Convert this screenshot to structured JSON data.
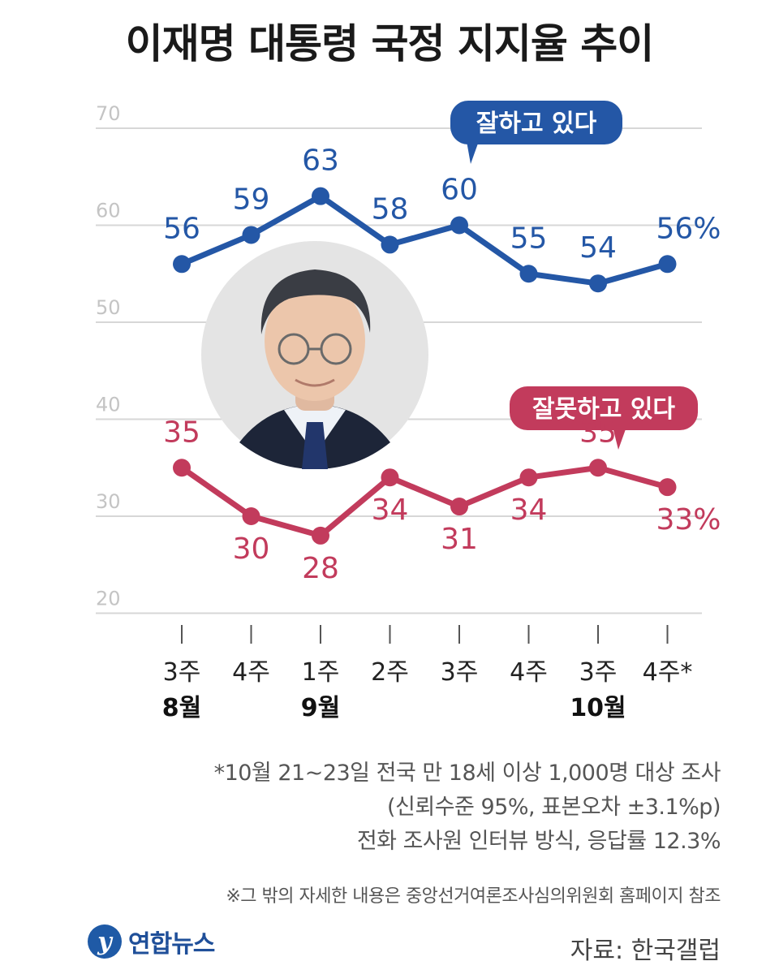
{
  "title": "이재명 대통령 국정 지지율 추이",
  "chart_data": {
    "type": "line",
    "title": "이재명 대통령 국정 지지율 추이",
    "ylim": [
      20,
      70
    ],
    "y_ticks": [
      "70",
      "60",
      "50",
      "40",
      "30",
      "20"
    ],
    "grid": true,
    "categories": [
      "3주",
      "4주",
      "1주",
      "2주",
      "3주",
      "4주",
      "3주",
      "4주*"
    ],
    "month_labels": [
      {
        "index": 0,
        "label": "8월"
      },
      {
        "index": 2,
        "label": "9월"
      },
      {
        "index": 6,
        "label": "10월"
      }
    ],
    "series": [
      {
        "name": "잘하고 있다",
        "color": "#2457a6",
        "values": [
          56,
          59,
          63,
          58,
          60,
          55,
          54,
          56
        ],
        "value_labels": [
          "56",
          "59",
          "63",
          "58",
          "60",
          "55",
          "54",
          "56%"
        ]
      },
      {
        "name": "잘못하고 있다",
        "color": "#c23b5c",
        "values": [
          35,
          30,
          28,
          34,
          31,
          34,
          35,
          33
        ],
        "value_labels": [
          "35",
          "30",
          "28",
          "34",
          "31",
          "34",
          "35",
          "33%"
        ]
      }
    ]
  },
  "photo": {
    "description_icon": "president-portrait-photo"
  },
  "notes": [
    "*10월 21~23일 전국 만 18세 이상 1,000명 대상 조사",
    "(신뢰수준 95%, 표본오차 ±3.1%p)",
    "전화 조사원 인터뷰 방식, 응답률 12.3%"
  ],
  "ref_note": "※그 밖의 자세한 내용은 중앙선거여론조사심의위원회 홈페이지 참조",
  "logo": {
    "mark": "y",
    "text": "연합뉴스"
  },
  "source": "자료: 한국갤럽"
}
